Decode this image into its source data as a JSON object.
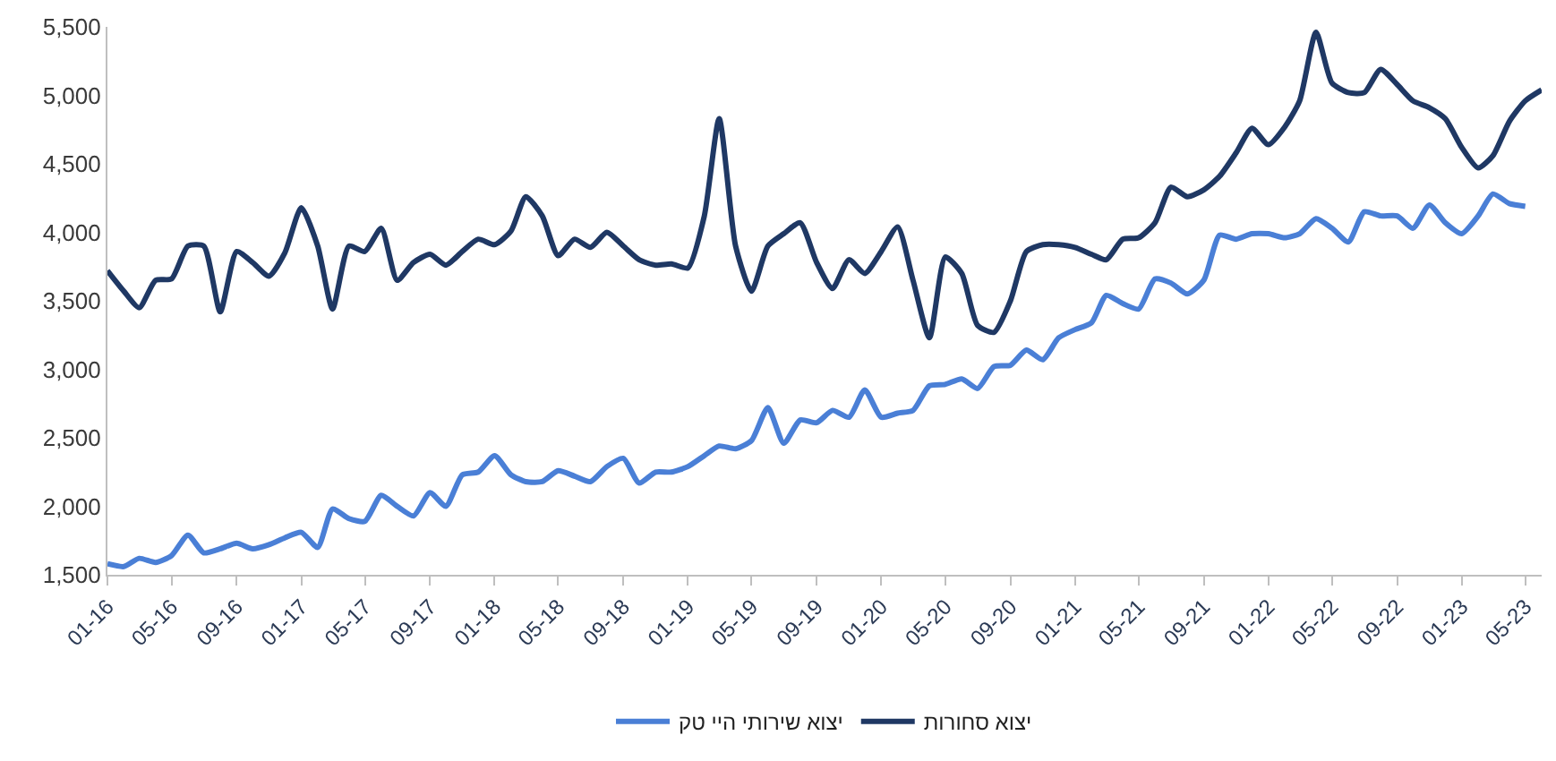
{
  "chart_data": {
    "type": "line",
    "x": [
      "2016-01",
      "2016-02",
      "2016-03",
      "2016-04",
      "2016-05",
      "2016-06",
      "2016-07",
      "2016-08",
      "2016-09",
      "2016-10",
      "2016-11",
      "2016-12",
      "2017-01",
      "2017-02",
      "2017-03",
      "2017-04",
      "2017-05",
      "2017-06",
      "2017-07",
      "2017-08",
      "2017-09",
      "2017-10",
      "2017-11",
      "2017-12",
      "2018-01",
      "2018-02",
      "2018-03",
      "2018-04",
      "2018-05",
      "2018-06",
      "2018-07",
      "2018-08",
      "2018-09",
      "2018-10",
      "2018-11",
      "2018-12",
      "2019-01",
      "2019-02",
      "2019-03",
      "2019-04",
      "2019-05",
      "2019-06",
      "2019-07",
      "2019-08",
      "2019-09",
      "2019-10",
      "2019-11",
      "2019-12",
      "2020-01",
      "2020-02",
      "2020-03",
      "2020-04",
      "2020-05",
      "2020-06",
      "2020-07",
      "2020-08",
      "2020-09",
      "2020-10",
      "2020-11",
      "2020-12",
      "2021-01",
      "2021-02",
      "2021-03",
      "2021-04",
      "2021-05",
      "2021-06",
      "2021-07",
      "2021-08",
      "2021-09",
      "2021-10",
      "2021-11",
      "2021-12",
      "2022-01",
      "2022-02",
      "2022-03",
      "2022-04",
      "2022-05",
      "2022-06",
      "2022-07",
      "2022-08",
      "2022-09",
      "2022-10",
      "2022-11",
      "2022-12",
      "2023-01",
      "2023-02",
      "2023-03",
      "2023-04",
      "2023-05",
      "2023-06"
    ],
    "series": [
      {
        "name": "יצוא סחורות",
        "color": "#1f3864",
        "values": [
          3720,
          3570,
          3450,
          3650,
          3660,
          3900,
          3900,
          3420,
          3860,
          3780,
          3680,
          3850,
          4180,
          3900,
          3440,
          3900,
          3860,
          4030,
          3650,
          3780,
          3840,
          3760,
          3860,
          3950,
          3910,
          4010,
          4260,
          4120,
          3830,
          3950,
          3890,
          4000,
          3900,
          3800,
          3760,
          3770,
          3740,
          4120,
          4830,
          3900,
          3570,
          3900,
          3990,
          4070,
          3780,
          3590,
          3800,
          3700,
          3860,
          4040,
          3650,
          3230,
          3820,
          3700,
          3320,
          3270,
          3500,
          3860,
          3910,
          3910,
          3890,
          3840,
          3800,
          3950,
          3960,
          4070,
          4330,
          4260,
          4310,
          4410,
          4580,
          4760,
          4640,
          4770,
          4960,
          5460,
          5090,
          5020,
          5020,
          5190,
          5080,
          4960,
          4910,
          4830,
          4620,
          4470,
          4560,
          4810,
          4960,
          5040
        ]
      },
      {
        "name": "יצוא שירותי היי טק",
        "color": "#4a7fd6",
        "values": [
          1580,
          1560,
          1620,
          1590,
          1640,
          1790,
          1660,
          1690,
          1730,
          1690,
          1720,
          1770,
          1810,
          1700,
          1980,
          1910,
          1890,
          2080,
          2000,
          1930,
          2100,
          2000,
          2230,
          2250,
          2370,
          2230,
          2180,
          2180,
          2260,
          2220,
          2180,
          2290,
          2350,
          2170,
          2250,
          2250,
          2290,
          2370,
          2440,
          2420,
          2480,
          2720,
          2460,
          2630,
          2610,
          2700,
          2650,
          2850,
          2650,
          2680,
          2700,
          2880,
          2890,
          2930,
          2860,
          3020,
          3030,
          3140,
          3070,
          3230,
          3290,
          3340,
          3540,
          3480,
          3440,
          3660,
          3630,
          3550,
          3650,
          3980,
          3950,
          3990,
          3990,
          3960,
          3990,
          4100,
          4030,
          3930,
          4150,
          4120,
          4120,
          4030,
          4200,
          4070,
          3990,
          4120,
          4280,
          4210,
          4190,
          null
        ]
      }
    ],
    "xlim": [
      "2016-01",
      "2023-06"
    ],
    "xticks": [
      {
        "value": "2016-01",
        "label": "01-16"
      },
      {
        "value": "2016-05",
        "label": "05-16"
      },
      {
        "value": "2016-09",
        "label": "09-16"
      },
      {
        "value": "2017-01",
        "label": "01-17"
      },
      {
        "value": "2017-05",
        "label": "05-17"
      },
      {
        "value": "2017-09",
        "label": "09-17"
      },
      {
        "value": "2018-01",
        "label": "01-18"
      },
      {
        "value": "2018-05",
        "label": "05-18"
      },
      {
        "value": "2018-09",
        "label": "09-18"
      },
      {
        "value": "2019-01",
        "label": "01-19"
      },
      {
        "value": "2019-05",
        "label": "05-19"
      },
      {
        "value": "2019-09",
        "label": "09-19"
      },
      {
        "value": "2020-01",
        "label": "01-20"
      },
      {
        "value": "2020-05",
        "label": "05-20"
      },
      {
        "value": "2020-09",
        "label": "09-20"
      },
      {
        "value": "2021-01",
        "label": "01-21"
      },
      {
        "value": "2021-05",
        "label": "05-21"
      },
      {
        "value": "2021-09",
        "label": "09-21"
      },
      {
        "value": "2022-01",
        "label": "01-22"
      },
      {
        "value": "2022-05",
        "label": "05-22"
      },
      {
        "value": "2022-09",
        "label": "09-22"
      },
      {
        "value": "2023-01",
        "label": "01-23"
      },
      {
        "value": "2023-05",
        "label": "05-23"
      }
    ],
    "ylim": [
      1500,
      5500
    ],
    "yticks": [
      {
        "value": 1500,
        "label": "1,500"
      },
      {
        "value": 2000,
        "label": "2,000"
      },
      {
        "value": 2500,
        "label": "2,500"
      },
      {
        "value": 3000,
        "label": "3,000"
      },
      {
        "value": 3500,
        "label": "3,500"
      },
      {
        "value": 4000,
        "label": "4,000"
      },
      {
        "value": 4500,
        "label": "4,500"
      },
      {
        "value": 5000,
        "label": "5,000"
      },
      {
        "value": 5500,
        "label": "5,500"
      }
    ],
    "legend": "bottom",
    "marker": "none",
    "line_style": "solid"
  }
}
